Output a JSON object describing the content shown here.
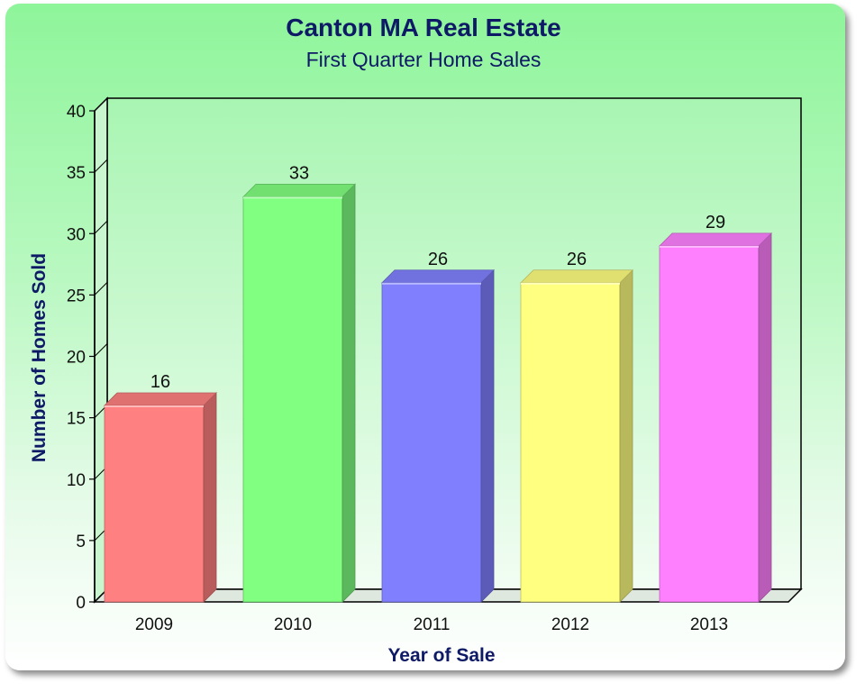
{
  "chart_data": {
    "type": "bar",
    "title": "Canton MA Real Estate",
    "subtitle": "First Quarter Home Sales",
    "xlabel": "Year of Sale",
    "ylabel": "Number of Homes Sold",
    "categories": [
      "2009",
      "2010",
      "2011",
      "2012",
      "2013"
    ],
    "values": [
      16,
      33,
      26,
      26,
      29
    ],
    "ylim": [
      0,
      40
    ],
    "yticks": [
      0,
      5,
      10,
      15,
      20,
      25,
      30,
      35,
      40
    ],
    "ytick_labels": [
      "0",
      "5",
      "10",
      "15",
      "20",
      "25",
      "30",
      "35",
      "40"
    ],
    "data_labels": [
      "16",
      "33",
      "26",
      "26",
      "29"
    ],
    "bar_colors": [
      "#ff8080",
      "#80ff80",
      "#8080ff",
      "#ffff80",
      "#ff80ff"
    ],
    "grid": false,
    "legend": "none",
    "style": "3d"
  }
}
